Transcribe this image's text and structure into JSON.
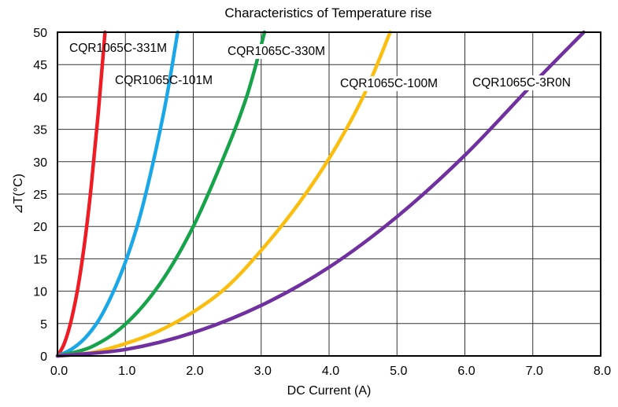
{
  "chart_data": {
    "type": "line",
    "title": "Characteristics of Temperature rise",
    "xlabel": "DC Current (A)",
    "ylabel": "⊿T(°C)",
    "xlim": [
      0,
      8
    ],
    "ylim": [
      0,
      50
    ],
    "x_ticks": [
      0,
      1,
      2,
      3,
      4,
      5,
      6,
      7,
      8
    ],
    "x_tick_labels": [
      "0.0",
      "1.0",
      "2.0",
      "3.0",
      "4.0",
      "5.0",
      "6.0",
      "7.0",
      "8.0"
    ],
    "y_ticks": [
      0,
      5,
      10,
      15,
      20,
      25,
      30,
      35,
      40,
      45,
      50
    ],
    "y_tick_labels": [
      "0",
      "5",
      "10",
      "15",
      "20",
      "25",
      "30",
      "35",
      "40",
      "45",
      "50"
    ],
    "grid": true,
    "series": [
      {
        "name": "CQR1065C-331M",
        "color": "#ee1c25",
        "x": [
          0,
          0.1,
          0.2,
          0.3,
          0.4,
          0.5,
          0.6,
          0.7
        ],
        "y": [
          0,
          1.9,
          5.4,
          10.5,
          17.5,
          26.5,
          37.5,
          50
        ]
      },
      {
        "name": "CQR1065C-101M",
        "color": "#1aa7e8",
        "x": [
          0,
          0.2,
          0.4,
          0.6,
          0.8,
          1.0,
          1.2,
          1.4,
          1.6,
          1.77
        ],
        "y": [
          0,
          1.0,
          2.7,
          5.4,
          9.4,
          14.5,
          21,
          29.5,
          39.5,
          50
        ]
      },
      {
        "name": "CQR1065C-330M",
        "color": "#16a34a",
        "x": [
          0,
          0.5,
          1.0,
          1.5,
          2.0,
          2.5,
          2.8,
          3.05
        ],
        "y": [
          0,
          1.4,
          4.9,
          11.0,
          20.0,
          32.0,
          40.5,
          50
        ]
      },
      {
        "name": "CQR1065C-100M",
        "color": "#fbbd0e",
        "x": [
          0,
          0.5,
          1.0,
          1.5,
          2.0,
          2.5,
          3.0,
          3.5,
          4.0,
          4.5,
          4.9
        ],
        "y": [
          0,
          0.5,
          1.9,
          3.9,
          6.8,
          10.7,
          16.3,
          22.8,
          30.5,
          40.0,
          50
        ]
      },
      {
        "name": "CQR1065C-3R0N",
        "color": "#7030a0",
        "x": [
          0,
          1.0,
          2.0,
          3.0,
          4.0,
          5.0,
          6.0,
          7.0,
          7.75
        ],
        "y": [
          0,
          1.0,
          3.6,
          7.8,
          13.7,
          21.5,
          31.0,
          42.0,
          50
        ]
      }
    ]
  }
}
